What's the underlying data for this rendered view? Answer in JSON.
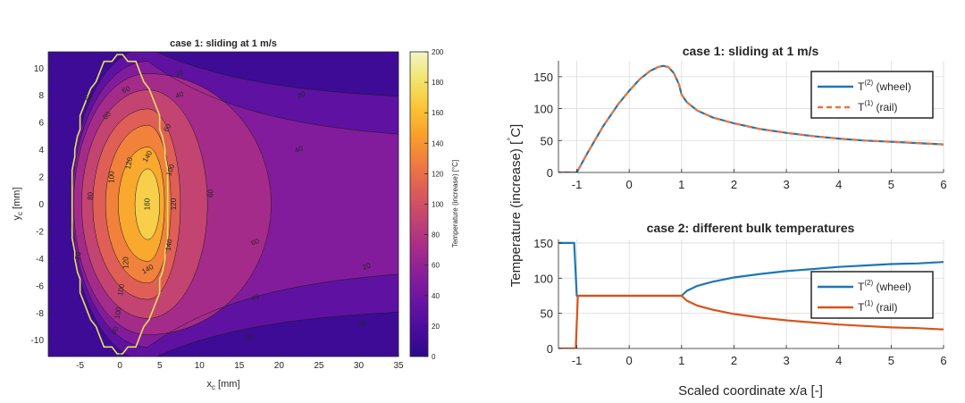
{
  "chart_data": [
    {
      "type": "contour",
      "title": "case 1: sliding at 1 m/s",
      "xlabel": "x",
      "xlabel_sub": "c",
      "xlabel_unit": " [mm]",
      "ylabel": "y",
      "ylabel_sub": "c",
      "ylabel_unit": " [mm]",
      "xlim": [
        -9,
        35
      ],
      "ylim": [
        -11.2,
        11.2
      ],
      "xticks": [
        "-5",
        "0",
        "5",
        "10",
        "15",
        "20",
        "25",
        "30",
        "35"
      ],
      "yticks": [
        "-10",
        "-8",
        "-6",
        "-4",
        "-2",
        "0",
        "2",
        "4",
        "6",
        "8",
        "10"
      ],
      "contour_levels": [
        20,
        40,
        60,
        80,
        100,
        120,
        140,
        160
      ],
      "contact_patch": {
        "x_center": 0,
        "semi_axis_x": 6,
        "semi_axis_y": 10.8,
        "color": "#e6e35a"
      },
      "peak": {
        "x": 3.5,
        "y": 0,
        "value": 167
      },
      "contour_labels": [
        "160",
        "140",
        "140",
        "140",
        "120",
        "120",
        "120",
        "100",
        "100",
        "100",
        "100",
        "80",
        "80",
        "80",
        "60",
        "60",
        "60",
        "60",
        "60",
        "40",
        "40",
        "40",
        "20",
        "20",
        "20",
        "20",
        "20",
        "20"
      ],
      "colorbar": {
        "label": "Temperature (increase) [°C]",
        "range": [
          0,
          200
        ],
        "ticks": [
          "0",
          "20",
          "40",
          "60",
          "80",
          "100",
          "120",
          "140",
          "160",
          "180",
          "200"
        ],
        "colormap": [
          "#2c0a8a",
          "#4a0c9e",
          "#6a14a2",
          "#8a1f9a",
          "#a92d87",
          "#c44470",
          "#de5c57",
          "#f07c3e",
          "#f8a02a",
          "#fbc437",
          "#f2e46c",
          "#f1f6c4"
        ]
      }
    },
    {
      "type": "line",
      "title": "case 1: sliding at 1 m/s",
      "xlim": [
        -1.35,
        6
      ],
      "ylim": [
        0,
        175
      ],
      "xticks": [
        "-1",
        "0",
        "1",
        "2",
        "3",
        "4",
        "5",
        "6"
      ],
      "yticks": [
        "0",
        "50",
        "100",
        "150"
      ],
      "series": [
        {
          "name": "T",
          "sup": "(2)",
          "suffix": " (wheel)",
          "color": "#1f77b4",
          "style": "solid",
          "x": [
            -1.35,
            -1.0,
            -0.8,
            -0.5,
            -0.2,
            0.0,
            0.2,
            0.4,
            0.55,
            0.65,
            0.75,
            0.85,
            0.95,
            1.0,
            1.1,
            1.3,
            1.6,
            2.0,
            2.5,
            3.0,
            3.5,
            4.0,
            4.5,
            5.0,
            5.5,
            6.0
          ],
          "y": [
            0,
            0,
            30,
            72,
            108,
            128,
            146,
            159,
            165,
            167,
            165,
            156,
            138,
            122,
            110,
            97,
            86,
            77,
            68,
            62,
            57,
            53,
            50,
            48,
            46,
            44
          ]
        },
        {
          "name": "T",
          "sup": "(1)",
          "suffix": " (rail)",
          "color": "#e8743b",
          "style": "dashed",
          "x": [
            -1.35,
            -1.0,
            -0.8,
            -0.5,
            -0.2,
            0.0,
            0.2,
            0.4,
            0.55,
            0.65,
            0.75,
            0.85,
            0.95,
            1.0,
            1.1,
            1.3,
            1.6,
            2.0,
            2.5,
            3.0,
            3.5,
            4.0,
            4.5,
            5.0,
            5.5,
            6.0
          ],
          "y": [
            0,
            0,
            30,
            72,
            108,
            128,
            146,
            159,
            165,
            167,
            165,
            156,
            138,
            122,
            110,
            97,
            86,
            77,
            68,
            62,
            57,
            53,
            50,
            48,
            46,
            44
          ]
        }
      ]
    },
    {
      "type": "line",
      "title": "case 2: different bulk temperatures",
      "xlabel": "Scaled coordinate x/a [-]",
      "xlim": [
        -1.35,
        6
      ],
      "ylim": [
        0,
        155
      ],
      "xticks": [
        "-1",
        "0",
        "1",
        "2",
        "3",
        "4",
        "5",
        "6"
      ],
      "yticks": [
        "0",
        "50",
        "100",
        "150"
      ],
      "series": [
        {
          "name": "T",
          "sup": "(2)",
          "suffix": " (wheel)",
          "color": "#1f77b4",
          "style": "solid",
          "x": [
            -1.35,
            -1.05,
            -1.0,
            -0.98,
            0.0,
            1.0,
            1.1,
            1.3,
            1.6,
            2.0,
            2.5,
            3.0,
            3.5,
            4.0,
            4.5,
            5.0,
            5.5,
            6.0
          ],
          "y": [
            150,
            150,
            75,
            75,
            75,
            75,
            82,
            89,
            95,
            101,
            106,
            110,
            113,
            116,
            118,
            120,
            121,
            123
          ]
        },
        {
          "name": "T",
          "sup": "(1)",
          "suffix": " (rail)",
          "color": "#d95319",
          "style": "solid",
          "x": [
            -1.35,
            -1.02,
            -0.98,
            0.0,
            1.0,
            1.1,
            1.3,
            1.6,
            2.0,
            2.5,
            3.0,
            3.5,
            4.0,
            4.5,
            5.0,
            5.5,
            6.0
          ],
          "y": [
            0,
            0,
            75,
            75,
            75,
            68,
            61,
            55,
            49,
            44,
            40,
            37,
            34,
            32,
            30,
            29,
            27
          ]
        }
      ]
    }
  ],
  "shared": {
    "ylabel": "Temperature (increase) [",
    "ylabel_unit": "C]"
  }
}
